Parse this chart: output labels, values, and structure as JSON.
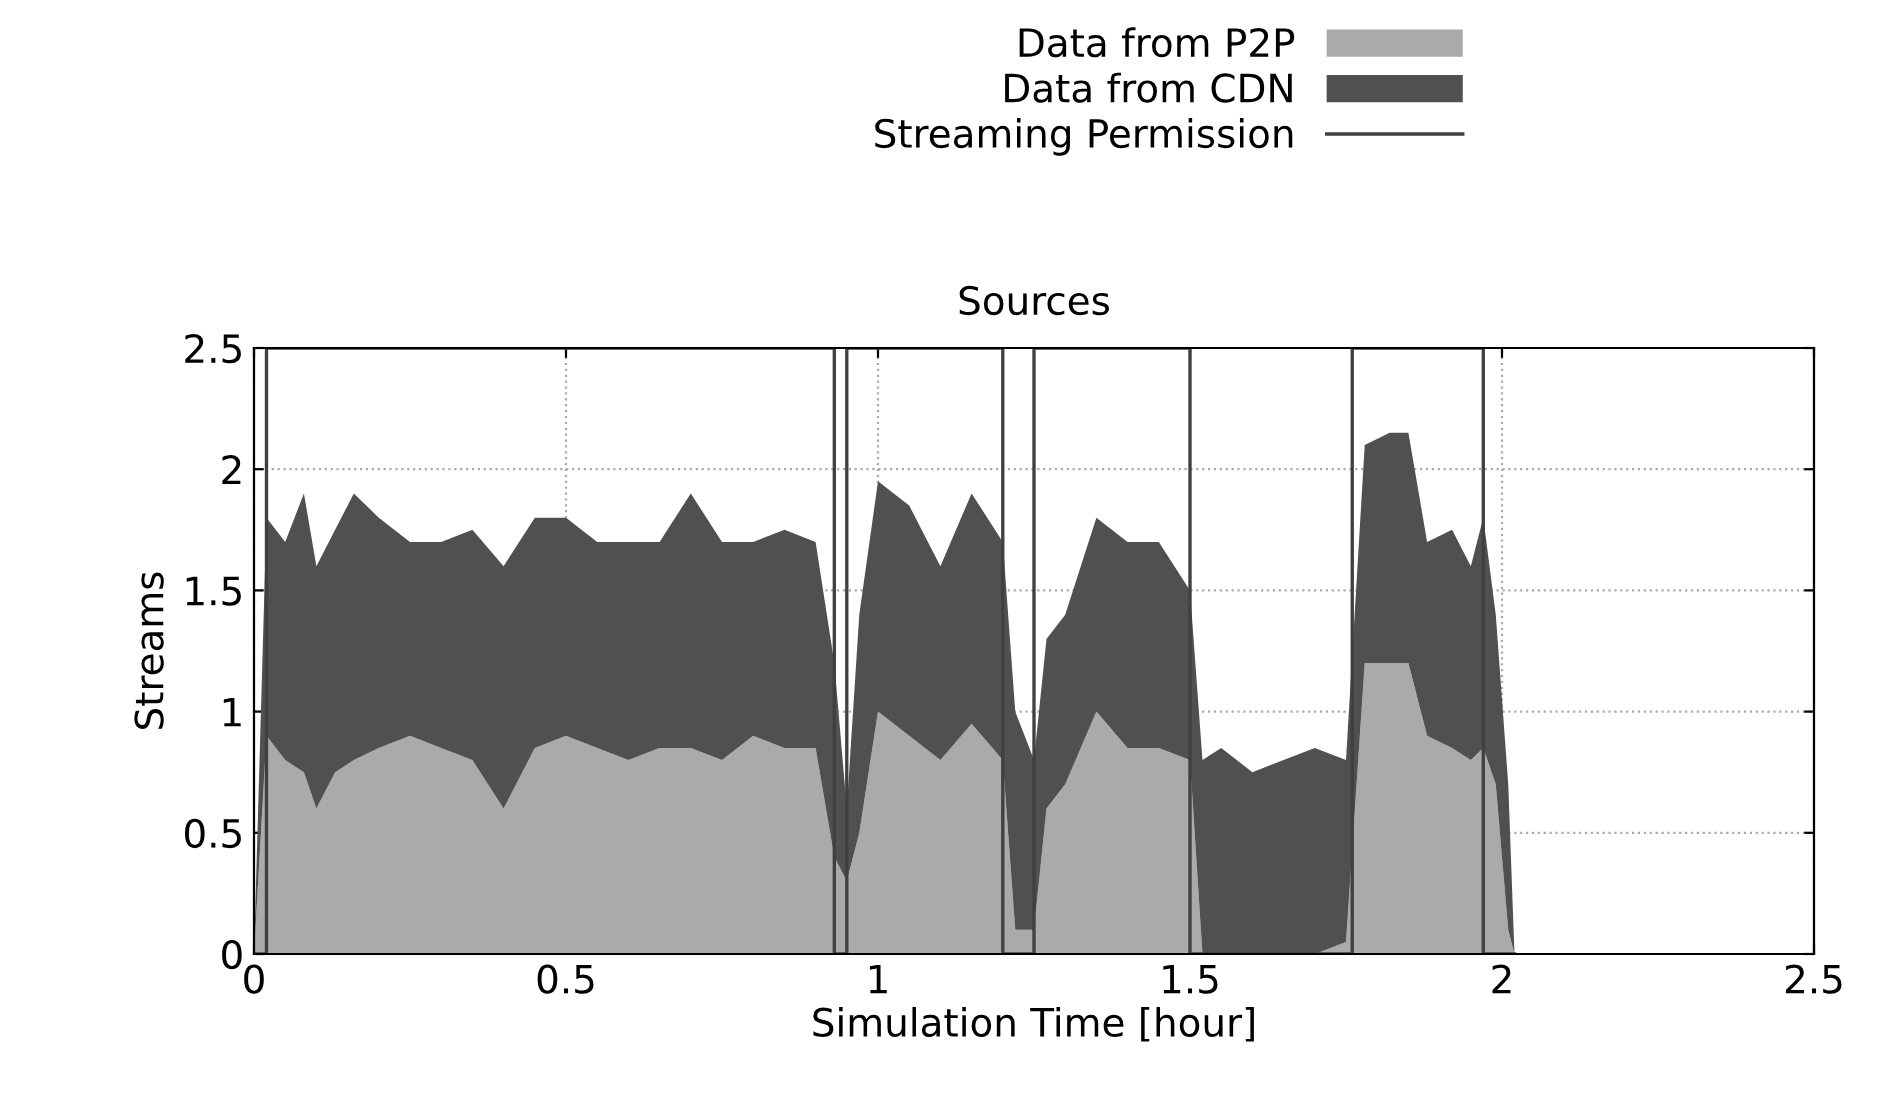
{
  "chart_data": {
    "type": "area",
    "title": "Sources",
    "xlabel": "Simulation Time [hour]",
    "ylabel": "Streams",
    "stacked": true,
    "xlim": [
      0,
      2.5
    ],
    "ylim": [
      0,
      2.5
    ],
    "xticks": [
      0,
      0.5,
      1,
      1.5,
      2,
      2.5
    ],
    "yticks": [
      0,
      0.5,
      1,
      1.5,
      2,
      2.5
    ],
    "grid": true,
    "legend": "top right",
    "x": [
      0,
      0.02,
      0.05,
      0.08,
      0.1,
      0.13,
      0.16,
      0.2,
      0.25,
      0.3,
      0.35,
      0.4,
      0.45,
      0.5,
      0.55,
      0.6,
      0.65,
      0.7,
      0.75,
      0.8,
      0.85,
      0.9,
      0.93,
      0.95,
      0.97,
      1.0,
      1.05,
      1.1,
      1.15,
      1.2,
      1.22,
      1.25,
      1.27,
      1.3,
      1.35,
      1.4,
      1.45,
      1.5,
      1.52,
      1.55,
      1.6,
      1.65,
      1.7,
      1.75,
      1.78,
      1.82,
      1.85,
      1.88,
      1.92,
      1.95,
      1.97,
      1.99,
      2.01,
      2.02
    ],
    "series": [
      {
        "name": "Data from P2P",
        "color": "#aaaaaa",
        "values": [
          0,
          0.9,
          0.8,
          0.75,
          0.6,
          0.75,
          0.8,
          0.85,
          0.9,
          0.85,
          0.8,
          0.6,
          0.85,
          0.9,
          0.85,
          0.8,
          0.85,
          0.85,
          0.8,
          0.9,
          0.85,
          0.85,
          0.4,
          0.3,
          0.5,
          1.0,
          0.9,
          0.8,
          0.95,
          0.8,
          0.1,
          0.1,
          0.6,
          0.7,
          1.0,
          0.85,
          0.85,
          0.8,
          0,
          0,
          0,
          0,
          0,
          0.05,
          1.2,
          1.2,
          1.2,
          0.9,
          0.85,
          0.8,
          0.85,
          0.7,
          0.1,
          0
        ]
      },
      {
        "name": "Data from CDN",
        "color": "#505050",
        "values": [
          0,
          0.9,
          0.9,
          1.15,
          1.0,
          1.0,
          1.1,
          0.95,
          0.8,
          0.85,
          0.95,
          1.0,
          0.95,
          0.9,
          0.85,
          0.9,
          0.85,
          1.05,
          0.9,
          0.8,
          0.9,
          0.85,
          0.8,
          0.3,
          0.9,
          0.95,
          0.95,
          0.8,
          0.95,
          0.9,
          0.9,
          0.7,
          0.7,
          0.7,
          0.8,
          0.85,
          0.85,
          0.7,
          0.8,
          0.85,
          0.75,
          0.8,
          0.85,
          0.75,
          0.9,
          0.95,
          0.95,
          0.8,
          0.9,
          0.8,
          0.95,
          0.7,
          0.6,
          0
        ]
      },
      {
        "name": "Streaming Permission",
        "type": "step",
        "color": "#404040",
        "x": [
          0,
          0.02,
          0.93,
          0.95,
          1.2,
          1.25,
          1.5,
          1.76,
          1.97,
          2.02
        ],
        "values": [
          0,
          2.5,
          0,
          2.5,
          0,
          2.5,
          0,
          2.5,
          0,
          0
        ]
      }
    ]
  }
}
